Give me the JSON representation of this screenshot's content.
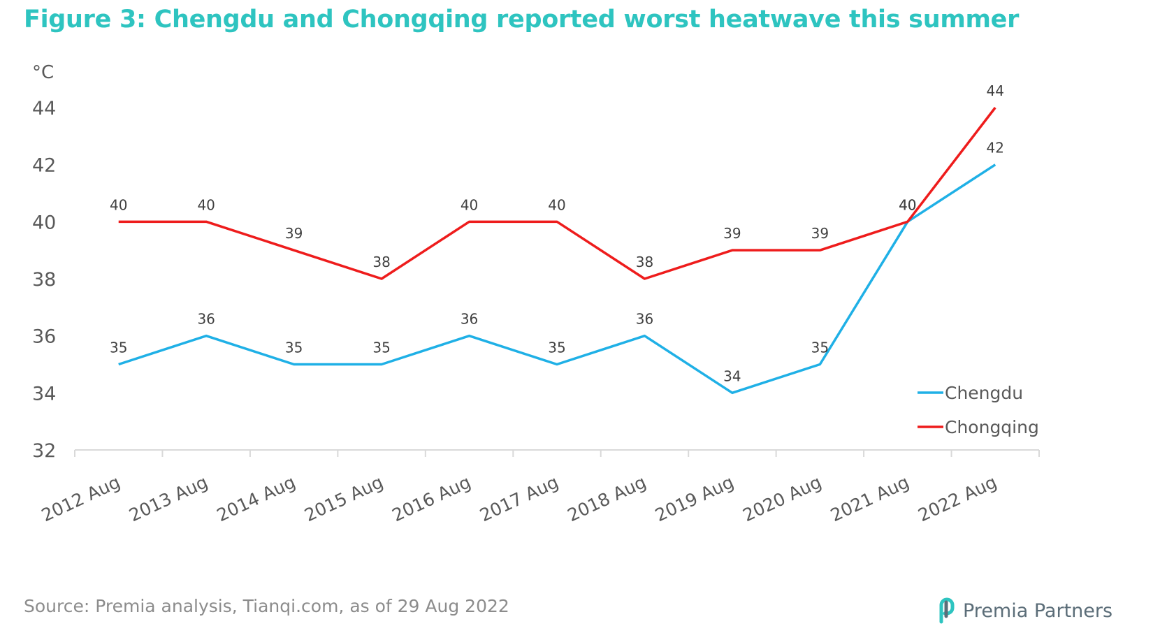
{
  "title": "Figure 3: Chengdu and Chongqing reported worst heatwave this summer",
  "source": "Source: Premia analysis, Tianqi.com, as of 29 Aug 2022",
  "logo": {
    "text": "Premia Partners",
    "color": "#5b6d78",
    "accent": "#2ec4c0",
    "icon": "premia-logo-icon"
  },
  "colors": {
    "title": "#2ec4c0",
    "chengdu": "#1fb0e6",
    "chongqing": "#ee1c1c",
    "axis": "#d9d9d9",
    "tick_text": "#595959",
    "label_text": "#404040"
  },
  "chart_data": {
    "type": "line",
    "title": "Figure 3: Chengdu and Chongqing reported worst heatwave this summer",
    "xlabel": "",
    "ylabel": "°C",
    "ylim": [
      32,
      44
    ],
    "yticks": [
      32,
      34,
      36,
      38,
      40,
      42,
      44
    ],
    "grid": false,
    "legend": "bottom-right",
    "categories": [
      "2012 Aug",
      "2013 Aug",
      "2014 Aug",
      "2015 Aug",
      "2016 Aug",
      "2017 Aug",
      "2018 Aug",
      "2019 Aug",
      "2020 Aug",
      "2021 Aug",
      "2022 Aug"
    ],
    "series": [
      {
        "name": "Chengdu",
        "values": [
          35,
          36,
          35,
          35,
          36,
          35,
          36,
          34,
          35,
          40,
          42
        ]
      },
      {
        "name": "Chongqing",
        "values": [
          40,
          40,
          39,
          38,
          40,
          40,
          38,
          39,
          39,
          40,
          44
        ]
      }
    ]
  }
}
